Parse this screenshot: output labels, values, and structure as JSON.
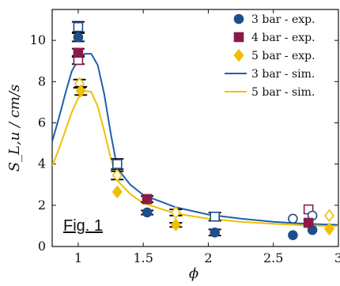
{
  "chart_data": {
    "type": "scatter",
    "xlabel": "ϕ",
    "ylabel": "S_L,u / cm/s",
    "xlim": [
      0.8,
      3.0
    ],
    "ylim": [
      0,
      11.5
    ],
    "xticks": [
      "1",
      "1.5",
      "2",
      "2.5",
      "3"
    ],
    "xtick_values": [
      1,
      1.5,
      2,
      2.5,
      3
    ],
    "yticks": [
      "0",
      "2",
      "4",
      "6",
      "8",
      "10"
    ],
    "ytick_values": [
      0,
      2,
      4,
      6,
      8,
      10
    ],
    "figure_label": "Fig. 1",
    "legend_position": "top-right",
    "colors": {
      "3bar": "#1f4e8c",
      "4bar": "#8b1a4a",
      "5bar": "#f0c000",
      "sim3": "#1f5fb0",
      "sim5": "#f0c000"
    },
    "series": [
      {
        "name": "3 bar - exp.",
        "kind": "exp",
        "marker": "circle",
        "color": "#1f4e8c",
        "points": [
          [
            1.0,
            10.15
          ],
          [
            1.53,
            1.65
          ],
          [
            2.05,
            0.68
          ],
          [
            2.65,
            0.55
          ],
          [
            2.8,
            0.8
          ]
        ]
      },
      {
        "name": "4 bar - exp.",
        "kind": "exp",
        "marker": "square",
        "color": "#8b1a4a",
        "points": [
          [
            1.0,
            9.4
          ],
          [
            1.53,
            2.3
          ],
          [
            2.77,
            1.15
          ]
        ]
      },
      {
        "name": "5 bar - exp.",
        "kind": "exp",
        "marker": "diamond",
        "color": "#f0c000",
        "points": [
          [
            1.02,
            7.55
          ],
          [
            1.3,
            2.65
          ],
          [
            1.75,
            1.05
          ],
          [
            2.93,
            0.85
          ]
        ]
      },
      {
        "name": "3 bar - sim.",
        "kind": "sim",
        "color": "#1f5fb0",
        "points": [
          [
            0.8,
            5.1
          ],
          [
            0.85,
            6.2
          ],
          [
            0.9,
            7.4
          ],
          [
            0.95,
            8.5
          ],
          [
            1.0,
            9.05
          ],
          [
            1.05,
            9.35
          ],
          [
            1.1,
            9.35
          ],
          [
            1.15,
            8.8
          ],
          [
            1.2,
            7.4
          ],
          [
            1.25,
            5.5
          ],
          [
            1.3,
            3.8
          ],
          [
            1.4,
            3.0
          ],
          [
            1.5,
            2.5
          ],
          [
            1.75,
            1.9
          ],
          [
            2.0,
            1.55
          ],
          [
            2.25,
            1.35
          ],
          [
            2.5,
            1.2
          ],
          [
            2.75,
            1.1
          ],
          [
            3.0,
            1.05
          ]
        ]
      },
      {
        "name": "5 bar - sim.",
        "kind": "sim",
        "color": "#f0c000",
        "points": [
          [
            0.8,
            3.9
          ],
          [
            0.85,
            4.7
          ],
          [
            0.9,
            5.6
          ],
          [
            0.95,
            6.5
          ],
          [
            1.0,
            7.2
          ],
          [
            1.05,
            7.55
          ],
          [
            1.1,
            7.5
          ],
          [
            1.15,
            6.8
          ],
          [
            1.2,
            5.6
          ],
          [
            1.25,
            4.3
          ],
          [
            1.3,
            3.2
          ],
          [
            1.4,
            2.55
          ],
          [
            1.5,
            2.1
          ],
          [
            1.75,
            1.6
          ],
          [
            2.0,
            1.35
          ],
          [
            2.25,
            1.2
          ],
          [
            2.5,
            1.1
          ],
          [
            2.75,
            1.02
          ],
          [
            3.0,
            0.98
          ]
        ]
      }
    ],
    "hollow_markers": [
      {
        "x": 1.0,
        "y": 10.65,
        "marker": "square",
        "color": "#1f4e8c",
        "err": 0.25
      },
      {
        "x": 1.0,
        "y": 9.05,
        "marker": "square",
        "color": "#8b1a4a",
        "err": 0.2
      },
      {
        "x": 1.01,
        "y": 7.9,
        "marker": "diamond",
        "color": "#f0c000",
        "err": 0.2
      },
      {
        "x": 1.3,
        "y": 4.0,
        "marker": "square",
        "color": "#1f4e8c",
        "err": 0.25
      },
      {
        "x": 1.3,
        "y": 3.45,
        "marker": "diamond",
        "color": "#f0c000",
        "err": 0.2
      },
      {
        "x": 1.53,
        "y": 2.3,
        "marker": "square",
        "color": "#8b1a4a",
        "err": 0.15
      },
      {
        "x": 1.75,
        "y": 1.65,
        "marker": "diamond",
        "color": "#f0c000",
        "err": 0.15
      },
      {
        "x": 2.05,
        "y": 1.45,
        "marker": "square",
        "color": "#1f4e8c",
        "err": 0.2
      },
      {
        "x": 2.65,
        "y": 1.35,
        "marker": "circle",
        "color": "#1f4e8c",
        "err": 0
      },
      {
        "x": 2.77,
        "y": 1.8,
        "marker": "square",
        "color": "#8b1a4a",
        "err": 0
      },
      {
        "x": 2.8,
        "y": 1.5,
        "marker": "circle",
        "color": "#1f4e8c",
        "err": 0
      },
      {
        "x": 2.93,
        "y": 1.5,
        "marker": "diamond",
        "color": "#f0c000",
        "err": 0
      }
    ],
    "errorbar_filled": [
      {
        "x": 1.0,
        "y": 10.15,
        "err": 0.2
      },
      {
        "x": 1.0,
        "y": 9.4,
        "err": 0.2
      },
      {
        "x": 1.02,
        "y": 7.55,
        "err": 0.2
      },
      {
        "x": 1.53,
        "y": 1.65,
        "err": 0.1
      },
      {
        "x": 1.75,
        "y": 1.05,
        "err": 0.1
      },
      {
        "x": 2.05,
        "y": 0.68,
        "err": 0.15
      }
    ]
  }
}
